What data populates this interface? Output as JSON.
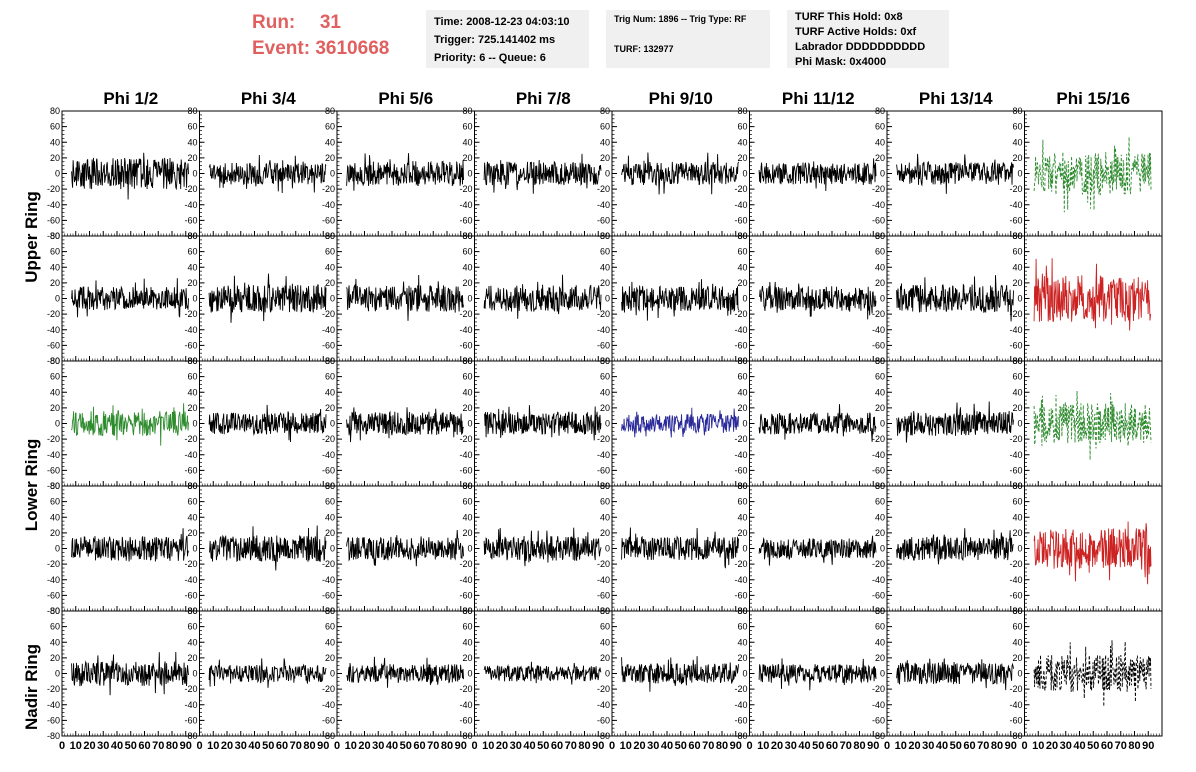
{
  "header": {
    "run_label": "Run:",
    "run_value": "31",
    "event_label": "Event:",
    "event_value": "3610668"
  },
  "info_box_1": {
    "time": "Time: 2008-12-23 04:03:10",
    "trigger": "Trigger: 725.141402 ms",
    "priority": "Priority: 6 -- Queue: 6"
  },
  "info_box_2": {
    "trig": "Trig Num: 1896 -- Trig Type: RF",
    "turf": "TURF: 132977"
  },
  "info_box_3": {
    "hold": "TURF This Hold: 0x8",
    "active": "TURF Active Holds: 0xf",
    "labrador": "Labrador DDDDDDDDDD",
    "mask": "Phi Mask: 0x4000"
  },
  "columns": [
    "Phi 1/2",
    "Phi 3/4",
    "Phi 5/6",
    "Phi 7/8",
    "Phi 9/10",
    "Phi 11/12",
    "Phi 13/14",
    "Phi 15/16"
  ],
  "rings": [
    "Upper Ring",
    "Lower Ring",
    "Nadir Ring"
  ],
  "colors": {
    "black": "#000000",
    "green": "#2e8b2e",
    "red": "#cc2222",
    "blue": "#2a2a9a",
    "run_text": "#e06060",
    "info_bg": "#f0f0f0"
  },
  "chart_data": {
    "type": "line",
    "description_grid": "5 rows x 8 columns of waveform panels",
    "ylim": [
      -80,
      80
    ],
    "yticks": [
      -80,
      -60,
      -40,
      -20,
      0,
      20,
      40,
      60,
      80
    ],
    "xlim": [
      0,
      100
    ],
    "xticks": [
      0,
      10,
      20,
      30,
      40,
      50,
      60,
      70,
      80,
      90
    ],
    "xtick_labels": [
      "0",
      "10",
      "20",
      "30",
      "40",
      "50",
      "60",
      "70",
      "80",
      "90"
    ],
    "panels": [
      {
        "row": 0,
        "col": 0,
        "color": "black",
        "style": "solid",
        "amp": 20,
        "seed": 1
      },
      {
        "row": 0,
        "col": 1,
        "color": "black",
        "style": "solid",
        "amp": 14,
        "seed": 2
      },
      {
        "row": 0,
        "col": 2,
        "color": "black",
        "style": "solid",
        "amp": 16,
        "seed": 3
      },
      {
        "row": 0,
        "col": 3,
        "color": "black",
        "style": "solid",
        "amp": 15,
        "seed": 4
      },
      {
        "row": 0,
        "col": 4,
        "color": "black",
        "style": "solid",
        "amp": 15,
        "seed": 5
      },
      {
        "row": 0,
        "col": 5,
        "color": "black",
        "style": "solid",
        "amp": 14,
        "seed": 6
      },
      {
        "row": 0,
        "col": 6,
        "color": "black",
        "style": "solid",
        "amp": 15,
        "seed": 7
      },
      {
        "row": 0,
        "col": 7,
        "color": "green",
        "style": "dashed",
        "amp": 28,
        "seed": 8
      },
      {
        "row": 1,
        "col": 0,
        "color": "black",
        "style": "solid",
        "amp": 15,
        "seed": 9
      },
      {
        "row": 1,
        "col": 1,
        "color": "black",
        "style": "solid",
        "amp": 18,
        "seed": 10
      },
      {
        "row": 1,
        "col": 2,
        "color": "black",
        "style": "solid",
        "amp": 17,
        "seed": 11
      },
      {
        "row": 1,
        "col": 3,
        "color": "black",
        "style": "solid",
        "amp": 17,
        "seed": 12
      },
      {
        "row": 1,
        "col": 4,
        "color": "black",
        "style": "solid",
        "amp": 16,
        "seed": 13
      },
      {
        "row": 1,
        "col": 5,
        "color": "black",
        "style": "solid",
        "amp": 16,
        "seed": 14
      },
      {
        "row": 1,
        "col": 6,
        "color": "black",
        "style": "solid",
        "amp": 18,
        "seed": 15
      },
      {
        "row": 1,
        "col": 7,
        "color": "red",
        "style": "solid",
        "amp": 30,
        "seed": 16
      },
      {
        "row": 2,
        "col": 0,
        "color": "green",
        "style": "solid",
        "amp": 16,
        "seed": 17
      },
      {
        "row": 2,
        "col": 1,
        "color": "black",
        "style": "solid",
        "amp": 14,
        "seed": 18
      },
      {
        "row": 2,
        "col": 2,
        "color": "black",
        "style": "solid",
        "amp": 15,
        "seed": 19
      },
      {
        "row": 2,
        "col": 3,
        "color": "black",
        "style": "solid",
        "amp": 15,
        "seed": 20
      },
      {
        "row": 2,
        "col": 4,
        "color": "blue",
        "style": "solid",
        "amp": 12,
        "seed": 21
      },
      {
        "row": 2,
        "col": 5,
        "color": "black",
        "style": "solid",
        "amp": 14,
        "seed": 22
      },
      {
        "row": 2,
        "col": 6,
        "color": "black",
        "style": "solid",
        "amp": 16,
        "seed": 23
      },
      {
        "row": 2,
        "col": 7,
        "color": "green",
        "style": "dashed",
        "amp": 26,
        "seed": 24
      },
      {
        "row": 3,
        "col": 0,
        "color": "black",
        "style": "solid",
        "amp": 16,
        "seed": 25
      },
      {
        "row": 3,
        "col": 1,
        "color": "black",
        "style": "solid",
        "amp": 17,
        "seed": 26
      },
      {
        "row": 3,
        "col": 2,
        "color": "black",
        "style": "solid",
        "amp": 15,
        "seed": 27
      },
      {
        "row": 3,
        "col": 3,
        "color": "black",
        "style": "solid",
        "amp": 16,
        "seed": 28
      },
      {
        "row": 3,
        "col": 4,
        "color": "black",
        "style": "solid",
        "amp": 15,
        "seed": 29
      },
      {
        "row": 3,
        "col": 5,
        "color": "black",
        "style": "solid",
        "amp": 13,
        "seed": 30
      },
      {
        "row": 3,
        "col": 6,
        "color": "black",
        "style": "solid",
        "amp": 15,
        "seed": 31
      },
      {
        "row": 3,
        "col": 7,
        "color": "red",
        "style": "solid",
        "amp": 26,
        "seed": 32
      },
      {
        "row": 4,
        "col": 0,
        "color": "black",
        "style": "solid",
        "amp": 16,
        "seed": 33
      },
      {
        "row": 4,
        "col": 1,
        "color": "black",
        "style": "solid",
        "amp": 11,
        "seed": 34
      },
      {
        "row": 4,
        "col": 2,
        "color": "black",
        "style": "solid",
        "amp": 12,
        "seed": 35
      },
      {
        "row": 4,
        "col": 3,
        "color": "black",
        "style": "solid",
        "amp": 10,
        "seed": 36
      },
      {
        "row": 4,
        "col": 4,
        "color": "black",
        "style": "solid",
        "amp": 13,
        "seed": 37
      },
      {
        "row": 4,
        "col": 5,
        "color": "black",
        "style": "solid",
        "amp": 12,
        "seed": 38
      },
      {
        "row": 4,
        "col": 6,
        "color": "black",
        "style": "solid",
        "amp": 14,
        "seed": 39
      },
      {
        "row": 4,
        "col": 7,
        "color": "black",
        "style": "dashed",
        "amp": 24,
        "seed": 40
      }
    ]
  }
}
